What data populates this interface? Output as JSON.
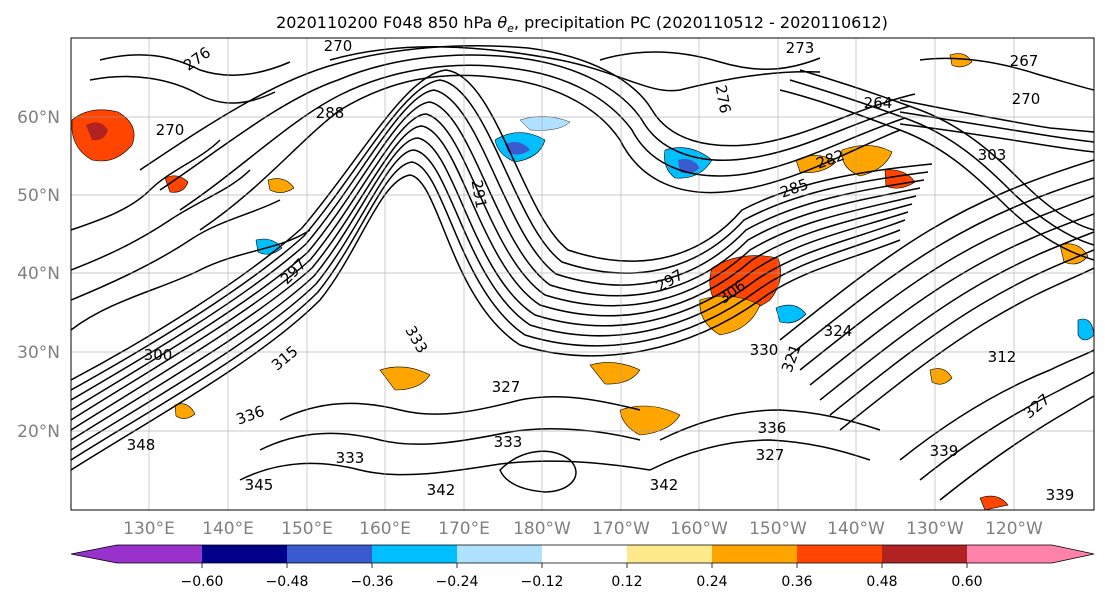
{
  "title_prefix": "2020110200 F048 850 hPa ",
  "title_symbol": "θ",
  "title_subscript": "e",
  "title_suffix": ", precipitation PC (2020110512 - 2020110612)",
  "map": {
    "lat_labels": [
      "60°N",
      "50°N",
      "40°N",
      "30°N",
      "20°N"
    ],
    "lon_labels": [
      "130°E",
      "140°E",
      "150°E",
      "160°E",
      "170°E",
      "180°W",
      "170°W",
      "160°W",
      "150°W",
      "140°W",
      "130°W",
      "120°W"
    ],
    "contour_labels": [
      "270",
      "273",
      "276",
      "276",
      "267",
      "270",
      "270",
      "288",
      "264",
      "303",
      "282",
      "285",
      "291",
      "297",
      "297",
      "306",
      "300",
      "333",
      "330",
      "321",
      "312",
      "324",
      "315",
      "336",
      "348",
      "333",
      "327",
      "333",
      "345",
      "342",
      "342",
      "336",
      "327",
      "339",
      "339",
      "327"
    ]
  },
  "colorbar": {
    "tick_labels": [
      "−0.60",
      "−0.48",
      "−0.36",
      "−0.24",
      "−0.12",
      "0.12",
      "0.24",
      "0.36",
      "0.48",
      "0.60"
    ],
    "colors": [
      "#9932cc",
      "#00008b",
      "#3a5bd0",
      "#00bfff",
      "#b0e2ff",
      "#ffffff",
      "#ffe98a",
      "#ffa500",
      "#ff4500",
      "#b22222",
      "#ff82ab"
    ]
  }
}
